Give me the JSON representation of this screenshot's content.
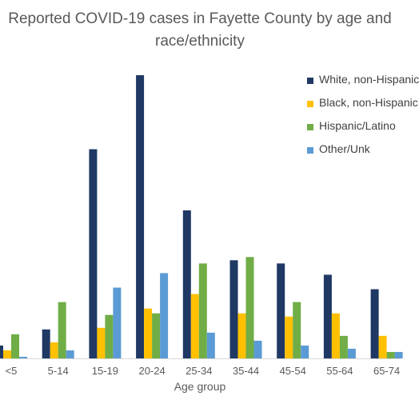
{
  "chart_data": {
    "type": "bar",
    "title": "Reported COVID-19 cases in Fayette County by age and race/ethnicity",
    "title_lines": [
      "Reported COVID-19 cases in Fayette County by age and",
      "race/ethnicity"
    ],
    "xlabel": "Age group",
    "ylabel": "",
    "categories": [
      "<5",
      "5-14",
      "15-19",
      "20-24",
      "25-34",
      "35-44",
      "45-54",
      "55-64",
      "65-74"
    ],
    "series": [
      {
        "name": "White, non-Hispanic",
        "color": "#1f3864",
        "values": [
          8,
          18,
          130,
          176,
          92,
          61,
          59,
          52,
          43
        ]
      },
      {
        "name": "Black, non-Hispanic",
        "color": "#ffc000",
        "values": [
          5,
          10,
          19,
          31,
          40,
          28,
          26,
          28,
          14
        ]
      },
      {
        "name": "Hispanic/Latino",
        "color": "#70ad47",
        "values": [
          15,
          35,
          27,
          28,
          59,
          63,
          35,
          14,
          4
        ]
      },
      {
        "name": "Other/Unk",
        "color": "#5b9bd5",
        "values": [
          1,
          5,
          44,
          53,
          16,
          11,
          8,
          6,
          4
        ]
      }
    ],
    "ylim": [
      0,
      180
    ],
    "grid": false,
    "legend_position": "right"
  }
}
